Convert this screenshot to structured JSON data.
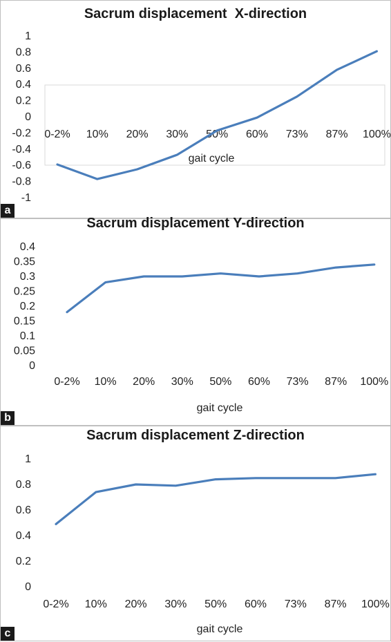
{
  "charts": [
    {
      "panel_label": "a",
      "chart_data": {
        "type": "line",
        "title": "Sacrum displacement  X-direction",
        "xlabel": "gait cycle",
        "ylabel": "",
        "categories": [
          "0-2%",
          "10%",
          "20%",
          "30%",
          "50%",
          "60%",
          "73%",
          "87%",
          "100%"
        ],
        "series": [
          {
            "values": [
              -0.59,
              -0.77,
              -0.65,
              -0.47,
              -0.17,
              -0.01,
              0.25,
              0.58,
              0.81
            ]
          }
        ],
        "ylim": [
          -1,
          1
        ],
        "yticks": [
          "1",
          "0.8",
          "0.6",
          "0.4",
          "0.2",
          "0",
          "-0.2",
          "-0.4",
          "-0.6",
          "-0.8",
          "-1"
        ],
        "grid": false,
        "legend": "none",
        "line_color": "#4a7ebb"
      }
    },
    {
      "panel_label": "b",
      "chart_data": {
        "type": "line",
        "title": "Sacrum displacement Y-direction",
        "xlabel": "gait cycle",
        "ylabel": "",
        "categories": [
          "0-2%",
          "10%",
          "20%",
          "30%",
          "50%",
          "60%",
          "73%",
          "87%",
          "100%"
        ],
        "series": [
          {
            "values": [
              0.18,
              0.28,
              0.3,
              0.3,
              0.31,
              0.3,
              0.31,
              0.33,
              0.34
            ]
          }
        ],
        "ylim": [
          0,
          0.4
        ],
        "yticks": [
          "0.4",
          "0.35",
          "0.3",
          "0.25",
          "0.2",
          "0.15",
          "0.1",
          "0.05",
          "0"
        ],
        "grid": false,
        "legend": "none",
        "line_color": "#4a7ebb"
      }
    },
    {
      "panel_label": "c",
      "chart_data": {
        "type": "line",
        "title": "Sacrum displacement Z-direction",
        "xlabel": "gait cycle",
        "ylabel": "",
        "categories": [
          "0-2%",
          "10%",
          "20%",
          "30%",
          "50%",
          "60%",
          "73%",
          "87%",
          "100%"
        ],
        "series": [
          {
            "values": [
              0.49,
              0.74,
              0.8,
              0.79,
              0.84,
              0.85,
              0.85,
              0.85,
              0.88
            ]
          }
        ],
        "ylim": [
          0,
          1
        ],
        "yticks": [
          "1",
          "0.8",
          "0.6",
          "0.4",
          "0.2",
          "0"
        ],
        "grid": false,
        "legend": "none",
        "line_color": "#4a7ebb"
      }
    }
  ]
}
